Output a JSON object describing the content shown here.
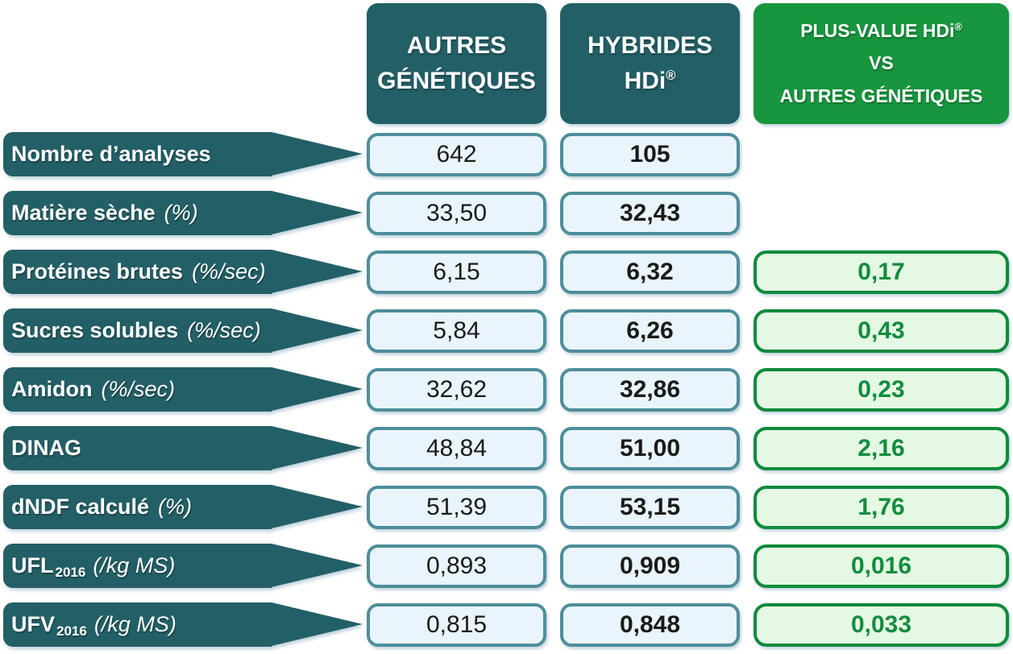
{
  "chart_data": {
    "type": "table",
    "title": "",
    "columns": [
      "",
      "AUTRES GÉNÉTIQUES",
      "HYBRIDES HDi®",
      "PLUS-VALUE HDi® VS AUTRES GÉNÉTIQUES"
    ],
    "rows": [
      [
        "Nombre d’analyses",
        642,
        105,
        null
      ],
      [
        "Matière sèche (%)",
        33.5,
        32.43,
        null
      ],
      [
        "Protéines brutes (%/sec)",
        6.15,
        6.32,
        0.17
      ],
      [
        "Sucres solubles (%/sec)",
        5.84,
        6.26,
        0.43
      ],
      [
        "Amidon (%/sec)",
        32.62,
        32.86,
        0.23
      ],
      [
        "DINAG",
        48.84,
        51.0,
        2.16
      ],
      [
        "dNDF calculé (%)",
        51.39,
        53.15,
        1.76
      ],
      [
        "UFL2016 (/kg MS)",
        0.893,
        0.909,
        0.016
      ],
      [
        "UFV2016 (/kg MS)",
        0.815,
        0.848,
        0.033
      ]
    ]
  },
  "headers": [
    {
      "lines": [
        "AUTRES",
        "GÉNÉTIQUES"
      ]
    },
    {
      "lines": [
        "HYBRIDES",
        "HDi®"
      ]
    },
    {
      "lines": [
        "PLUS-VALUE HDi®",
        "VS",
        "AUTRES GÉNÉTIQUES"
      ]
    }
  ],
  "rows": [
    {
      "label": "Nombre d’analyses",
      "sub": "",
      "unit": "",
      "autres": "642",
      "hdi": "105",
      "plus": ""
    },
    {
      "label": "Matière sèche",
      "sub": "",
      "unit": "(%)",
      "autres": "33,50",
      "hdi": "32,43",
      "plus": ""
    },
    {
      "label": "Protéines brutes",
      "sub": "",
      "unit": "(%/sec)",
      "autres": "6,15",
      "hdi": "6,32",
      "plus": "0,17"
    },
    {
      "label": "Sucres solubles",
      "sub": "",
      "unit": "(%/sec)",
      "autres": "5,84",
      "hdi": "6,26",
      "plus": "0,43"
    },
    {
      "label": "Amidon",
      "sub": "",
      "unit": "(%/sec)",
      "autres": "32,62",
      "hdi": "32,86",
      "plus": "0,23"
    },
    {
      "label": "DINAG",
      "sub": "",
      "unit": "",
      "autres": "48,84",
      "hdi": "51,00",
      "plus": "2,16"
    },
    {
      "label": "dNDF calculé",
      "sub": "",
      "unit": "(%)",
      "autres": "51,39",
      "hdi": "53,15",
      "plus": "1,76"
    },
    {
      "label": "UFL",
      "sub": "2016",
      "unit": "(/kg MS)",
      "autres": "0,893",
      "hdi": "0,909",
      "plus": "0,016"
    },
    {
      "label": "UFV",
      "sub": "2016",
      "unit": "(/kg MS)",
      "autres": "0,815",
      "hdi": "0,848",
      "plus": "0,033"
    }
  ],
  "colors": {
    "teal": "#235F66",
    "greenHeader": "#18963E",
    "valueBorder": "#4E8E9B",
    "valueFill": "#E9F4FC",
    "valueText": "#1A1A1A",
    "greenBorder": "#0F8A3C",
    "greenFill": "#E4F8E4",
    "greenText": "#128C3E"
  }
}
